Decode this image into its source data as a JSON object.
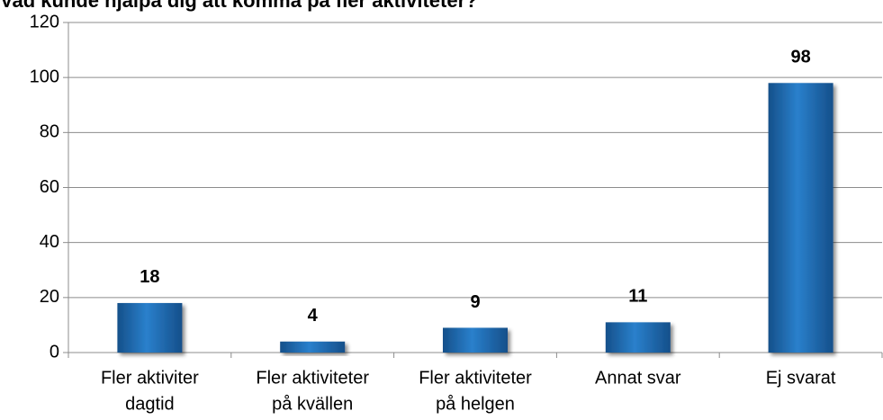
{
  "chart_data": {
    "type": "bar",
    "title": "Vad kunde hjälpa dig att komma på fler aktiviteter?",
    "categories": [
      [
        "Fler aktiviter",
        "dagtid"
      ],
      [
        "Fler aktiviteter",
        "på kvällen"
      ],
      [
        "Fler aktiviteter",
        "på helgen"
      ],
      [
        "Annat svar"
      ],
      [
        "Ej svarat"
      ]
    ],
    "values": [
      18,
      4,
      9,
      11,
      98
    ],
    "color": "#1f6fb8",
    "ylim": [
      0,
      120
    ],
    "yticks": [
      0,
      20,
      40,
      60,
      80,
      100,
      120
    ],
    "grid": true
  }
}
